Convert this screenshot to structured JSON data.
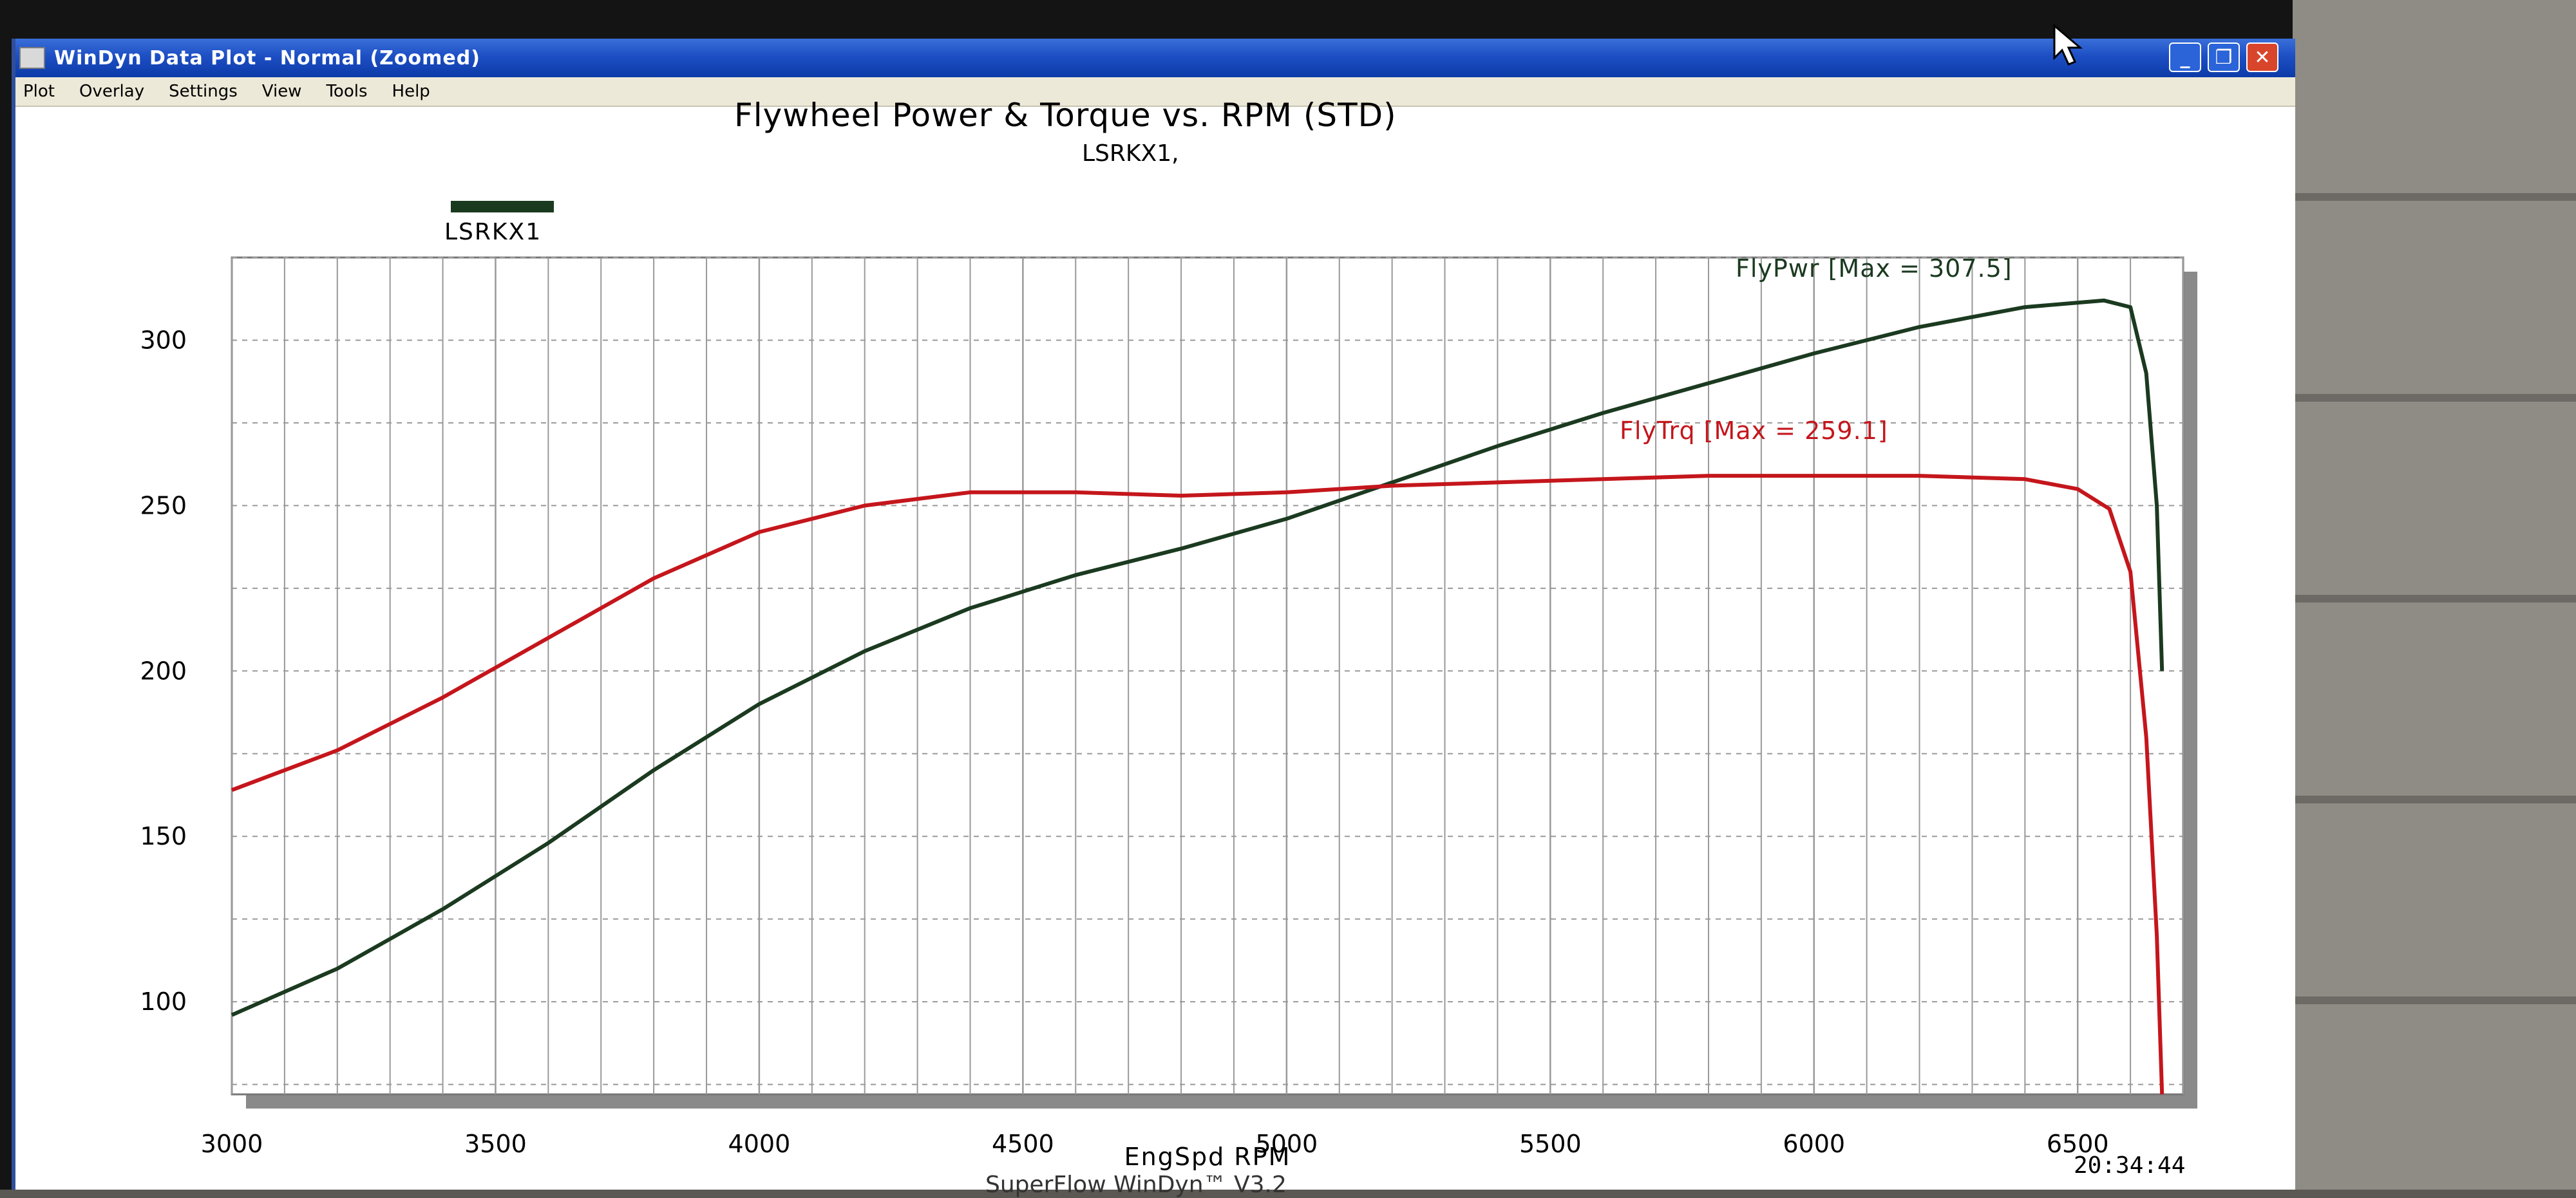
{
  "window": {
    "title": "WinDyn Data Plot - Normal   (Zoomed)",
    "controls": {
      "minimize": "_",
      "maximize": "❐",
      "close": "✕"
    }
  },
  "menu": {
    "items": [
      "Plot",
      "Overlay",
      "Settings",
      "View",
      "Tools",
      "Help"
    ]
  },
  "status": {
    "clock": "20:34:44",
    "footer": "SuperFlow WinDyn™ V3.2"
  },
  "colors": {
    "power": "#1b3a20",
    "torque": "#c4161c",
    "grid": "#999999",
    "plot_bg": "#ffffff"
  },
  "icons": {
    "app": "app-window-icon",
    "cursor": "mouse-pointer-icon"
  },
  "chart_data": {
    "type": "line",
    "title": "Flywheel Power & Torque vs. RPM (STD)",
    "subtitle": "LSRKX1,",
    "legend": [
      "LSRKX1"
    ],
    "legend_placement": "top-left",
    "xlabel": "EngSpd RPM",
    "ylabel": "",
    "xlim": [
      3000,
      6700
    ],
    "ylim": [
      72,
      325
    ],
    "x_ticks": [
      3000,
      3500,
      4000,
      4500,
      5000,
      5500,
      6000,
      6500
    ],
    "y_ticks": [
      100,
      150,
      200,
      250,
      300
    ],
    "grid": true,
    "series": [
      {
        "name": "FlyPwr",
        "label": "FlyPwr [Max = 307.5]",
        "points": [
          [
            3000,
            96
          ],
          [
            3200,
            110
          ],
          [
            3400,
            128
          ],
          [
            3600,
            148
          ],
          [
            3800,
            170
          ],
          [
            4000,
            190
          ],
          [
            4200,
            206
          ],
          [
            4400,
            219
          ],
          [
            4600,
            229
          ],
          [
            4800,
            237
          ],
          [
            5000,
            246
          ],
          [
            5200,
            257
          ],
          [
            5400,
            268
          ],
          [
            5600,
            278
          ],
          [
            5800,
            287
          ],
          [
            6000,
            296
          ],
          [
            6200,
            304
          ],
          [
            6400,
            310
          ],
          [
            6550,
            312
          ],
          [
            6600,
            310
          ],
          [
            6630,
            290
          ],
          [
            6650,
            250
          ],
          [
            6660,
            200
          ]
        ]
      },
      {
        "name": "FlyTrq",
        "label": "FlyTrq [Max = 259.1]",
        "points": [
          [
            3000,
            164
          ],
          [
            3200,
            176
          ],
          [
            3400,
            192
          ],
          [
            3600,
            210
          ],
          [
            3800,
            228
          ],
          [
            4000,
            242
          ],
          [
            4200,
            250
          ],
          [
            4400,
            254
          ],
          [
            4600,
            254
          ],
          [
            4800,
            253
          ],
          [
            5000,
            254
          ],
          [
            5200,
            256
          ],
          [
            5400,
            257
          ],
          [
            5600,
            258
          ],
          [
            5800,
            259
          ],
          [
            6000,
            259
          ],
          [
            6200,
            259
          ],
          [
            6400,
            258
          ],
          [
            6500,
            255
          ],
          [
            6560,
            249
          ],
          [
            6600,
            230
          ],
          [
            6630,
            180
          ],
          [
            6650,
            120
          ],
          [
            6660,
            72
          ]
        ]
      }
    ]
  }
}
